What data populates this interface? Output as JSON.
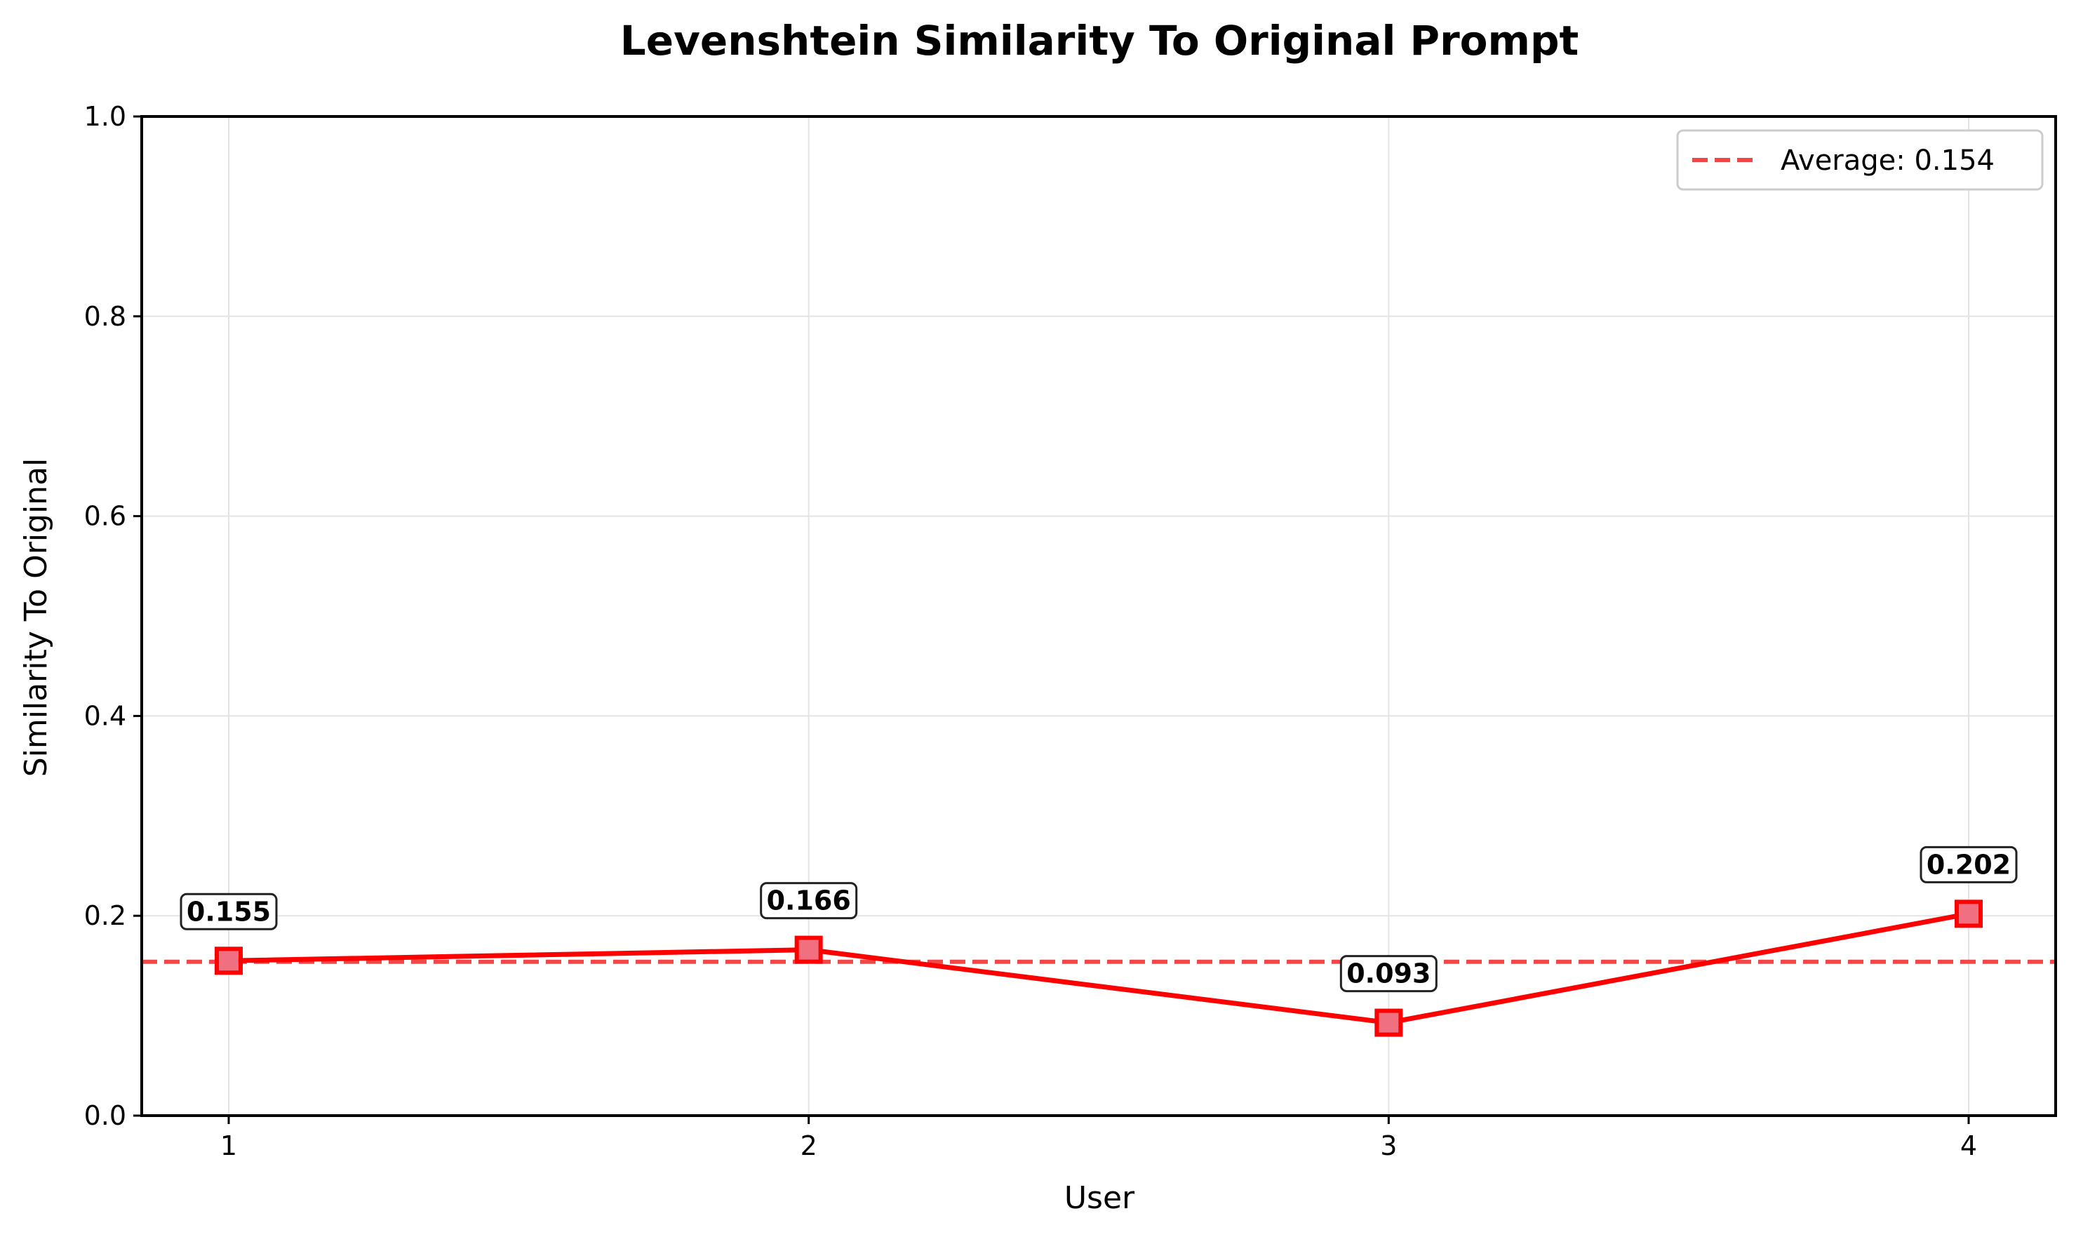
{
  "chart_data": {
    "type": "line",
    "title": "Levenshtein Similarity To Original Prompt",
    "xlabel": "User",
    "ylabel": "Similarity To Original",
    "x": [
      1,
      2,
      3,
      4
    ],
    "x_tick_labels": [
      "1",
      "2",
      "3",
      "4"
    ],
    "y_ticks": [
      0.0,
      0.2,
      0.4,
      0.6,
      0.8,
      1.0
    ],
    "y_tick_labels": [
      "0.0",
      "0.2",
      "0.4",
      "0.6",
      "0.8",
      "1.0"
    ],
    "ylim": [
      0,
      1
    ],
    "xlim": [
      0.85,
      4.15
    ],
    "grid": true,
    "series": [
      {
        "values": [
          0.155,
          0.166,
          0.093,
          0.202
        ],
        "data_labels": [
          "0.155",
          "0.166",
          "0.093",
          "0.202"
        ],
        "color": "#ff0000",
        "marker": "square"
      }
    ],
    "reference_line": {
      "name": "Average: 0.154",
      "value": 0.154,
      "color": "#f04848",
      "style": "dashed"
    },
    "legend_position": "top-right"
  }
}
